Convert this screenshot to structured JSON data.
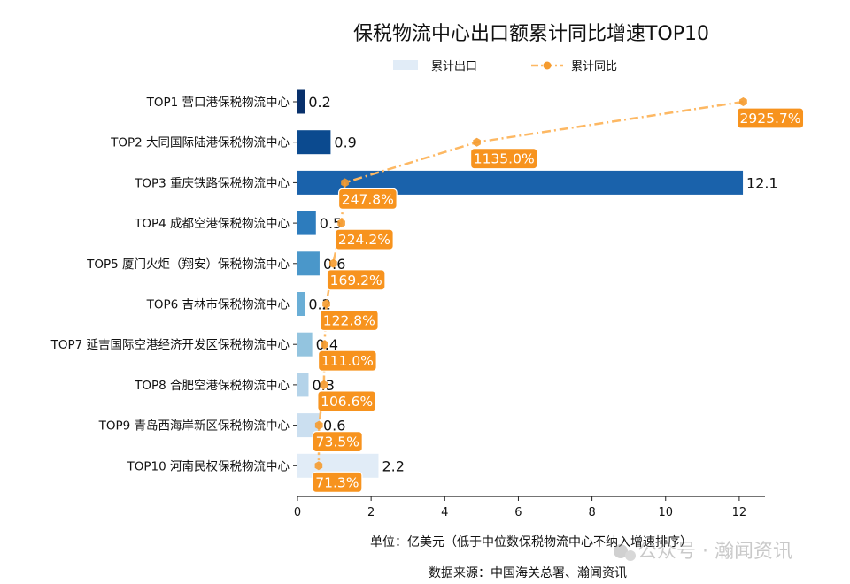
{
  "chart_data": {
    "type": "bar",
    "orientation": "horizontal",
    "title": "保税物流中心出口额累计同比增速TOP10",
    "xlabel": "单位：亿美元（低于中位数保税物流中心不纳入增速排序）",
    "source": "数据来源：中国海关总署、瀚闻资讯",
    "watermark": "公众号 · 瀚闻资讯",
    "xlim": [
      0,
      12.7
    ],
    "xticks": [
      0,
      2,
      4,
      6,
      8,
      10,
      12
    ],
    "grid": false,
    "legend_placement": "top-center",
    "categories": [
      "TOP1 营口港保税物流中心",
      "TOP2 大同国际陆港保税物流中心",
      "TOP3 重庆铁路保税物流中心",
      "TOP4 成都空港保税物流中心",
      "TOP5 厦门火炬（翔安）保税物流中心",
      "TOP6 吉林市保税物流中心",
      "TOP7 延吉国际空港经济开发区保税物流中心",
      "TOP8 合肥空港保税物流中心",
      "TOP9 青岛西海岸新区保税物流中心",
      "TOP10 河南民权保税物流中心"
    ],
    "series": [
      {
        "name": "累计出口",
        "type": "bar",
        "values": [
          0.2,
          0.9,
          12.1,
          0.5,
          0.6,
          0.2,
          0.4,
          0.3,
          0.6,
          2.2
        ],
        "labels": [
          "0.2",
          "0.9",
          "12.1",
          "0.5",
          "0.6",
          "0.2",
          "0.4",
          "0.3",
          "0.6",
          "2.2"
        ],
        "colors": [
          "#08306b",
          "#0b4a8f",
          "#1a62ab",
          "#2d7cbd",
          "#4a97ca",
          "#6aaed6",
          "#93c4df",
          "#b4d3e9",
          "#cbdff0",
          "#e1ecf7"
        ]
      },
      {
        "name": "累计同比",
        "type": "line",
        "unit": "%",
        "axis": "secondary-hidden",
        "secondary_xlim": [
          -71,
          3072
        ],
        "values": [
          2925.7,
          1135.0,
          247.8,
          224.2,
          169.2,
          122.8,
          111.0,
          106.6,
          73.5,
          71.3
        ],
        "labels": [
          "2925.7%",
          "1135.0%",
          "247.8%",
          "224.2%",
          "169.2%",
          "122.8%",
          "111.0%",
          "106.6%",
          "73.5%",
          "71.3%"
        ],
        "line_color": "#fdb863",
        "marker_color": "#f59b2f",
        "label_bg": "#f7931e"
      }
    ]
  }
}
